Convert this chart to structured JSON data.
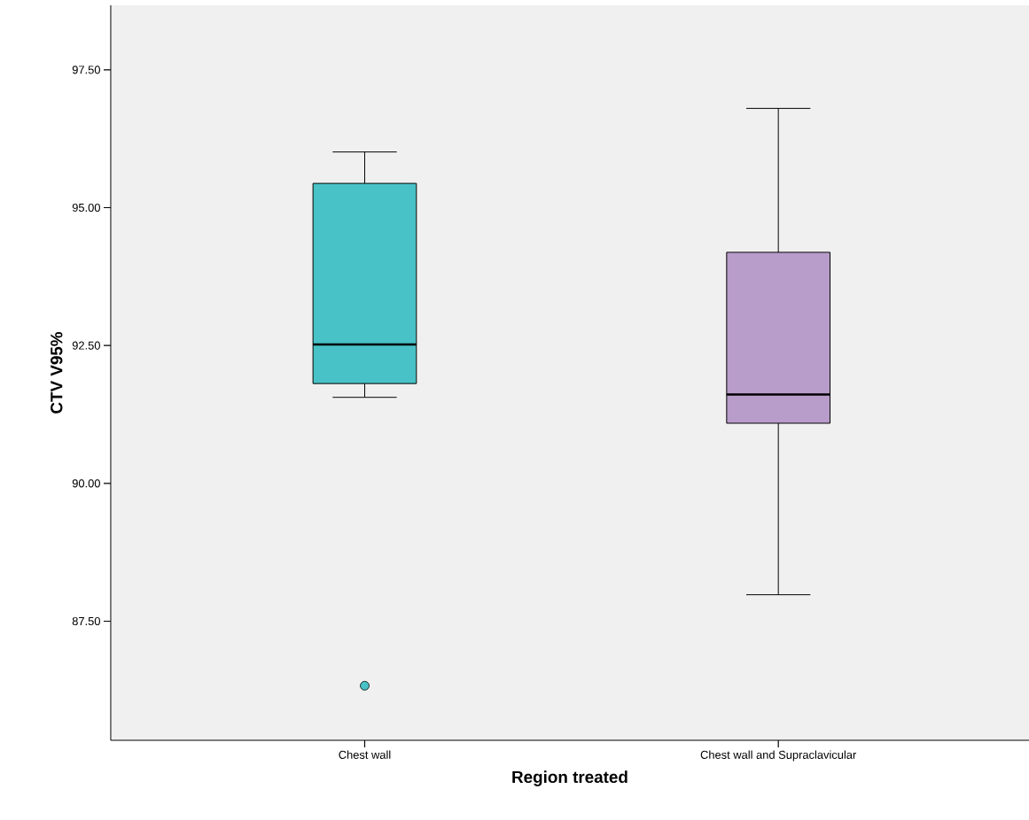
{
  "chart_data": {
    "type": "box",
    "xlabel": "Region treated",
    "ylabel": "CTV V95%",
    "categories": [
      "Chest wall",
      "Chest wall and Supraclavicular"
    ],
    "colors": [
      "#48c2c6",
      "#b89cc9"
    ],
    "boxes": [
      {
        "low": 91.56,
        "q1": 91.81,
        "median": 92.52,
        "q3": 95.44,
        "high": 96.01,
        "outliers": [
          86.33
        ]
      },
      {
        "low": 87.98,
        "q1": 91.09,
        "median": 91.61,
        "q3": 94.19,
        "high": 96.8
      }
    ],
    "ylim": [
      85.34,
      98.67
    ],
    "yticks": [
      {
        "value": 87.5,
        "label": "87.50"
      },
      {
        "value": 90,
        "label": "90.00"
      },
      {
        "value": 92.5,
        "label": "92.50"
      },
      {
        "value": 95,
        "label": "95.00"
      },
      {
        "value": 97.5,
        "label": "97.50"
      }
    ],
    "marker": "circle"
  }
}
